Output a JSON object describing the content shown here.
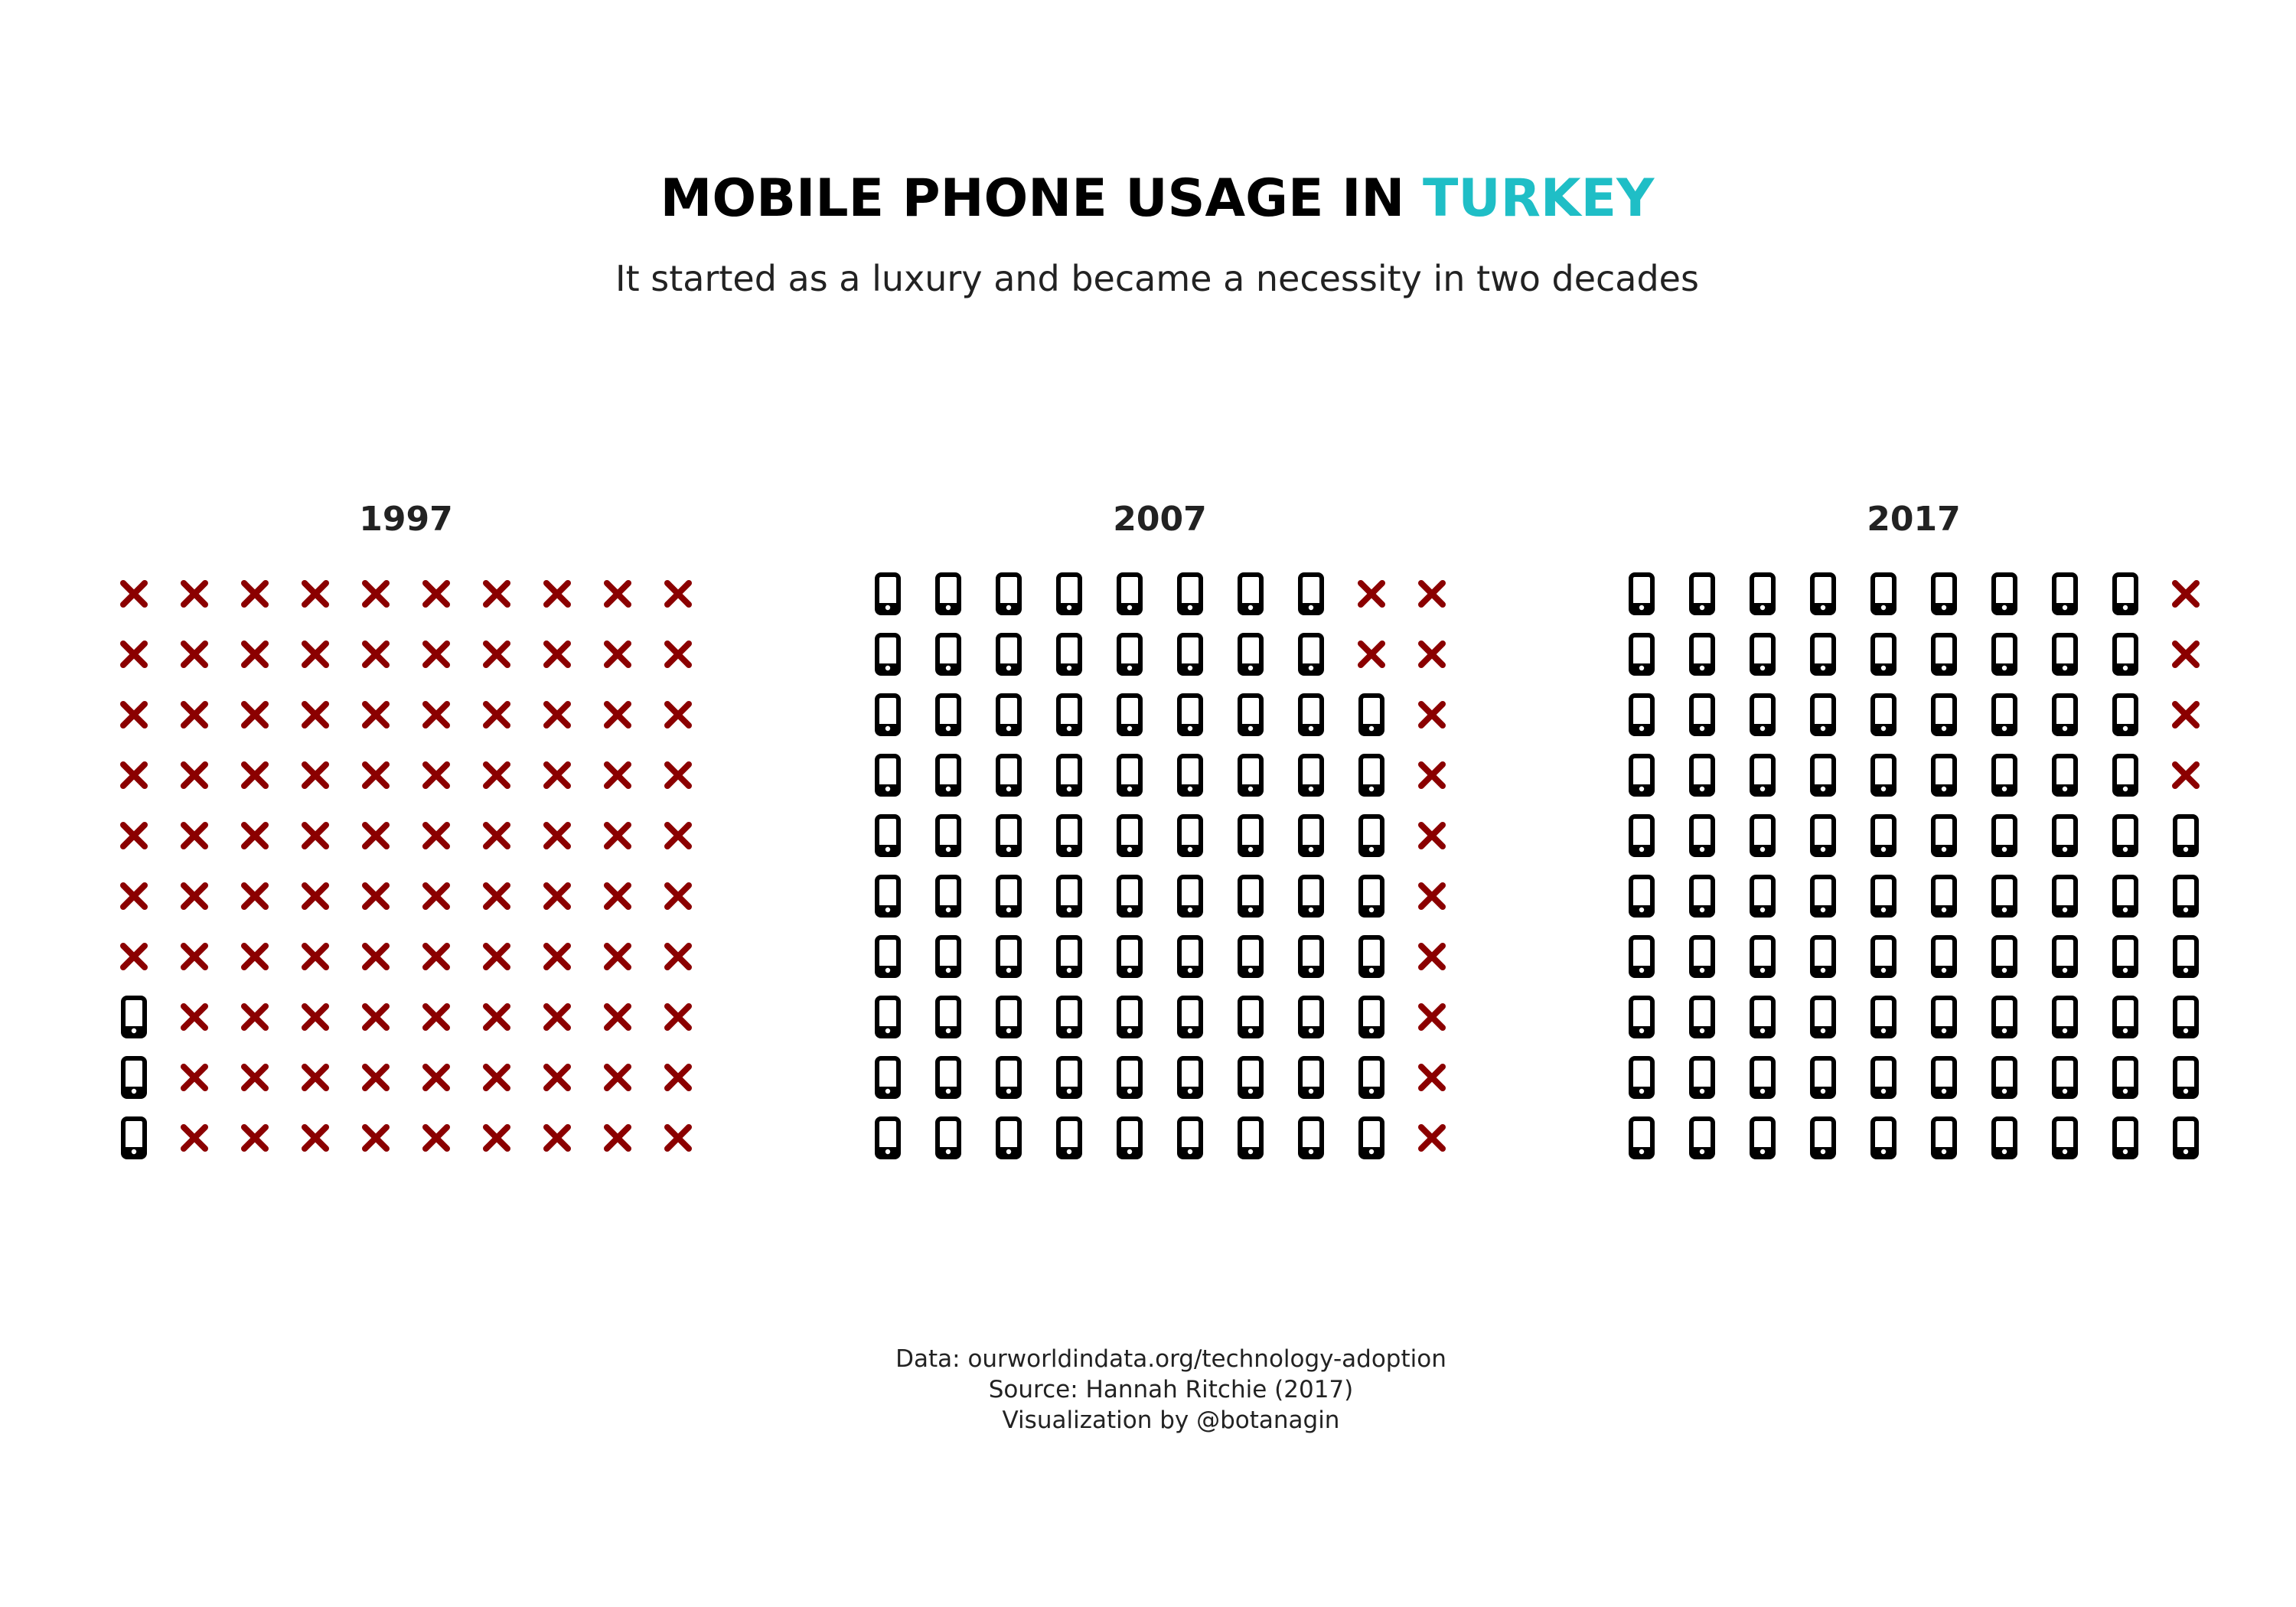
{
  "title": {
    "prefix": "MOBILE PHONE USAGE IN ",
    "highlight": "TURKEY"
  },
  "subtitle": "It started as a luxury and became a necessity in two decades",
  "caption": {
    "data_line": "Data: ourworldindata.org/technology-adoption",
    "source_line": "Source: Hannah Ritchie (2017)",
    "viz_line": "Visualization by @botanagin"
  },
  "colors": {
    "highlight": "#1fbec6",
    "cross": "#8b0000",
    "phone": "#000000",
    "text": "#222222",
    "background": "#ffffff"
  },
  "icons": {
    "user": "mobile-phone-icon",
    "non_user": "cross-icon"
  },
  "chart_data": {
    "type": "waffle",
    "grid": {
      "rows": 10,
      "cols": 10
    },
    "panels": [
      {
        "year": "1997",
        "phone_users": 3,
        "non_users": 97
      },
      {
        "year": "2007",
        "phone_users": 88,
        "non_users": 12
      },
      {
        "year": "2017",
        "phone_users": 96,
        "non_users": 4
      }
    ]
  }
}
